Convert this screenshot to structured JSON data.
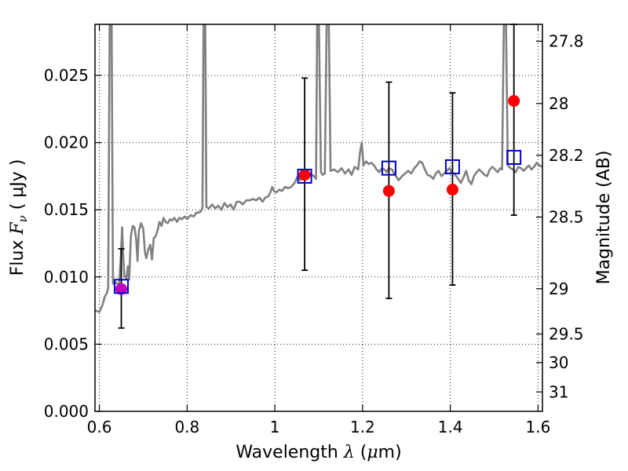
{
  "chart_data": {
    "type": "scatter",
    "title": "",
    "xlabel": {
      "prefix": "Wavelength  ",
      "symbol": "λ",
      "unit_open": " (",
      "unit_mu": "μ",
      "unit_rest": "m)"
    },
    "ylabel": {
      "prefix": "Flux  ",
      "symbol": "F",
      "sub": "ν",
      "unit": "  ( μJy )"
    },
    "y2label": "Magnitude (AB)",
    "xlim": [
      0.59,
      1.61
    ],
    "ylim": [
      0.0,
      0.0288
    ],
    "grid": true,
    "grid_style": "dotted",
    "x_ticks": [
      {
        "value": 0.6,
        "label": "0.6"
      },
      {
        "value": 0.8,
        "label": "0.8"
      },
      {
        "value": 1.0,
        "label": "1"
      },
      {
        "value": 1.2,
        "label": "1.2"
      },
      {
        "value": 1.4,
        "label": "1.4"
      },
      {
        "value": 1.6,
        "label": "1.6"
      }
    ],
    "y_ticks": [
      {
        "value": 0.0,
        "label": "0.000"
      },
      {
        "value": 0.005,
        "label": "0.005"
      },
      {
        "value": 0.01,
        "label": "0.010"
      },
      {
        "value": 0.015,
        "label": "0.015"
      },
      {
        "value": 0.02,
        "label": "0.020"
      },
      {
        "value": 0.025,
        "label": "0.025"
      }
    ],
    "y2_ticks": [
      {
        "mag": 27.8,
        "label": "27.8"
      },
      {
        "mag": 28.0,
        "label": "28"
      },
      {
        "mag": 28.2,
        "label": "28.2"
      },
      {
        "mag": 28.5,
        "label": "28.5"
      },
      {
        "mag": 29.0,
        "label": "29"
      },
      {
        "mag": 29.5,
        "label": "29.5"
      },
      {
        "mag": 30.0,
        "label": "30"
      },
      {
        "mag": 31.0,
        "label": "31"
      }
    ],
    "series": [
      {
        "kind": "spectrum-line",
        "color": "#808080",
        "points": [
          [
            0.59,
            0.0075
          ],
          [
            0.6,
            0.0074
          ],
          [
            0.607,
            0.0079
          ],
          [
            0.612,
            0.0085
          ],
          [
            0.617,
            0.0088
          ],
          [
            0.62,
            0.0092
          ],
          [
            0.6235,
            0.0288
          ],
          [
            0.628,
            0.0288
          ],
          [
            0.631,
            0.0095
          ],
          [
            0.636,
            0.0096
          ],
          [
            0.641,
            0.0095
          ],
          [
            0.645,
            0.0094
          ],
          [
            0.649,
            0.0116
          ],
          [
            0.652,
            0.0137
          ],
          [
            0.654,
            0.0118
          ],
          [
            0.657,
            0.0101
          ],
          [
            0.662,
            0.0099
          ],
          [
            0.665,
            0.0108
          ],
          [
            0.668,
            0.0098
          ],
          [
            0.672,
            0.0131
          ],
          [
            0.676,
            0.0138
          ],
          [
            0.68,
            0.0137
          ],
          [
            0.684,
            0.0128
          ],
          [
            0.687,
            0.0112
          ],
          [
            0.69,
            0.0134
          ],
          [
            0.695,
            0.014
          ],
          [
            0.7,
            0.0136
          ],
          [
            0.704,
            0.0118
          ],
          [
            0.707,
            0.0114
          ],
          [
            0.711,
            0.012
          ],
          [
            0.716,
            0.0124
          ],
          [
            0.72,
            0.0113
          ],
          [
            0.724,
            0.0129
          ],
          [
            0.728,
            0.013
          ],
          [
            0.733,
            0.0135
          ],
          [
            0.737,
            0.0141
          ],
          [
            0.742,
            0.0138
          ],
          [
            0.746,
            0.0144
          ],
          [
            0.751,
            0.0141
          ],
          [
            0.756,
            0.014
          ],
          [
            0.761,
            0.0143
          ],
          [
            0.766,
            0.0142
          ],
          [
            0.771,
            0.0144
          ],
          [
            0.777,
            0.0141
          ],
          [
            0.782,
            0.0144
          ],
          [
            0.788,
            0.0143
          ],
          [
            0.795,
            0.0145
          ],
          [
            0.8,
            0.0143
          ],
          [
            0.808,
            0.0146
          ],
          [
            0.815,
            0.0145
          ],
          [
            0.822,
            0.0148
          ],
          [
            0.829,
            0.0148
          ],
          [
            0.835,
            0.0151
          ],
          [
            0.8375,
            0.0288
          ],
          [
            0.8415,
            0.0288
          ],
          [
            0.844,
            0.0152
          ],
          [
            0.85,
            0.0151
          ],
          [
            0.857,
            0.0154
          ],
          [
            0.864,
            0.0151
          ],
          [
            0.871,
            0.0153
          ],
          [
            0.878,
            0.015
          ],
          [
            0.885,
            0.0155
          ],
          [
            0.892,
            0.0152
          ],
          [
            0.899,
            0.0154
          ],
          [
            0.906,
            0.015
          ],
          [
            0.913,
            0.0156
          ],
          [
            0.92,
            0.0156
          ],
          [
            0.927,
            0.0154
          ],
          [
            0.935,
            0.0157
          ],
          [
            0.943,
            0.0157
          ],
          [
            0.95,
            0.0158
          ],
          [
            0.957,
            0.0157
          ],
          [
            0.965,
            0.0159
          ],
          [
            0.972,
            0.0156
          ],
          [
            0.978,
            0.0159
          ],
          [
            0.985,
            0.016
          ],
          [
            0.99,
            0.0163
          ],
          [
            0.994,
            0.0167
          ],
          [
            0.998,
            0.0164
          ],
          [
            1.003,
            0.0163
          ],
          [
            1.01,
            0.0165
          ],
          [
            1.016,
            0.0164
          ],
          [
            1.023,
            0.0167
          ],
          [
            1.03,
            0.0166
          ],
          [
            1.037,
            0.0167
          ],
          [
            1.045,
            0.017
          ],
          [
            1.052,
            0.0175
          ],
          [
            1.058,
            0.0172
          ],
          [
            1.064,
            0.0174
          ],
          [
            1.07,
            0.0173
          ],
          [
            1.076,
            0.0178
          ],
          [
            1.08,
            0.0177
          ],
          [
            1.084,
            0.0176
          ],
          [
            1.089,
            0.0175
          ],
          [
            1.094,
            0.0173
          ],
          [
            1.0965,
            0.0288
          ],
          [
            1.1005,
            0.0288
          ],
          [
            1.105,
            0.0178
          ],
          [
            1.109,
            0.0176
          ],
          [
            1.114,
            0.0177
          ],
          [
            1.118,
            0.0288
          ],
          [
            1.123,
            0.0288
          ],
          [
            1.127,
            0.0179
          ],
          [
            1.135,
            0.018
          ],
          [
            1.144,
            0.0178
          ],
          [
            1.152,
            0.0181
          ],
          [
            1.16,
            0.0177
          ],
          [
            1.168,
            0.018
          ],
          [
            1.175,
            0.0176
          ],
          [
            1.182,
            0.0182
          ],
          [
            1.19,
            0.018
          ],
          [
            1.194,
            0.0192
          ],
          [
            1.198,
            0.02
          ],
          [
            1.202,
            0.0183
          ],
          [
            1.208,
            0.0186
          ],
          [
            1.214,
            0.0184
          ],
          [
            1.22,
            0.0185
          ],
          [
            1.226,
            0.0183
          ],
          [
            1.232,
            0.018
          ],
          [
            1.238,
            0.0178
          ],
          [
            1.244,
            0.0181
          ],
          [
            1.25,
            0.018
          ],
          [
            1.255,
            0.0178
          ],
          [
            1.26,
            0.0181
          ],
          [
            1.267,
            0.018
          ],
          [
            1.274,
            0.0176
          ],
          [
            1.282,
            0.0172
          ],
          [
            1.29,
            0.0175
          ],
          [
            1.297,
            0.0177
          ],
          [
            1.304,
            0.0179
          ],
          [
            1.311,
            0.0177
          ],
          [
            1.318,
            0.0181
          ],
          [
            1.324,
            0.0183
          ],
          [
            1.33,
            0.0186
          ],
          [
            1.336,
            0.0185
          ],
          [
            1.342,
            0.018
          ],
          [
            1.348,
            0.0176
          ],
          [
            1.355,
            0.0175
          ],
          [
            1.361,
            0.0173
          ],
          [
            1.367,
            0.0177
          ],
          [
            1.373,
            0.0179
          ],
          [
            1.38,
            0.0175
          ],
          [
            1.386,
            0.0177
          ],
          [
            1.392,
            0.0179
          ],
          [
            1.398,
            0.0181
          ],
          [
            1.404,
            0.0178
          ],
          [
            1.411,
            0.0176
          ],
          [
            1.418,
            0.0173
          ],
          [
            1.424,
            0.017
          ],
          [
            1.43,
            0.0174
          ],
          [
            1.436,
            0.0179
          ],
          [
            1.442,
            0.0172
          ],
          [
            1.448,
            0.0169
          ],
          [
            1.454,
            0.0175
          ],
          [
            1.46,
            0.0178
          ],
          [
            1.466,
            0.018
          ],
          [
            1.472,
            0.0178
          ],
          [
            1.478,
            0.0176
          ],
          [
            1.484,
            0.0175
          ],
          [
            1.49,
            0.018
          ],
          [
            1.496,
            0.0182
          ],
          [
            1.502,
            0.018
          ],
          [
            1.508,
            0.0178
          ],
          [
            1.514,
            0.0181
          ],
          [
            1.518,
            0.018
          ],
          [
            1.522,
            0.0288
          ],
          [
            1.527,
            0.0288
          ],
          [
            1.531,
            0.0183
          ],
          [
            1.537,
            0.0181
          ],
          [
            1.543,
            0.018
          ],
          [
            1.549,
            0.0178
          ],
          [
            1.555,
            0.0182
          ],
          [
            1.561,
            0.0181
          ],
          [
            1.567,
            0.0179
          ],
          [
            1.573,
            0.0181
          ],
          [
            1.579,
            0.0183
          ],
          [
            1.585,
            0.018
          ],
          [
            1.591,
            0.0182
          ],
          [
            1.597,
            0.0185
          ],
          [
            1.603,
            0.0183
          ],
          [
            1.61,
            0.0182
          ]
        ]
      },
      {
        "kind": "observed-points",
        "marker": "circle",
        "points": [
          {
            "x": 0.65,
            "y": 0.0091,
            "yerr_low": 0.0062,
            "yerr_high": 0.0121,
            "color": "#c000c0"
          },
          {
            "x": 1.068,
            "y": 0.0176,
            "yerr_low": 0.0105,
            "yerr_high": 0.0248,
            "color": "#ff0000"
          },
          {
            "x": 1.26,
            "y": 0.0164,
            "yerr_low": 0.0084,
            "yerr_high": 0.0245,
            "color": "#ff0000"
          },
          {
            "x": 1.405,
            "y": 0.0165,
            "yerr_low": 0.0094,
            "yerr_high": 0.0237,
            "color": "#ff0000"
          },
          {
            "x": 1.545,
            "y": 0.0231,
            "yerr_low": 0.0146,
            "yerr_high": 0.0288,
            "color": "#ff0000"
          }
        ]
      },
      {
        "kind": "model-photometry",
        "marker": "square",
        "color": "#0000cc",
        "points": [
          {
            "x": 0.65,
            "y": 0.0093
          },
          {
            "x": 1.068,
            "y": 0.0175
          },
          {
            "x": 1.26,
            "y": 0.0181
          },
          {
            "x": 1.405,
            "y": 0.0182
          },
          {
            "x": 1.545,
            "y": 0.0189
          }
        ]
      }
    ]
  }
}
